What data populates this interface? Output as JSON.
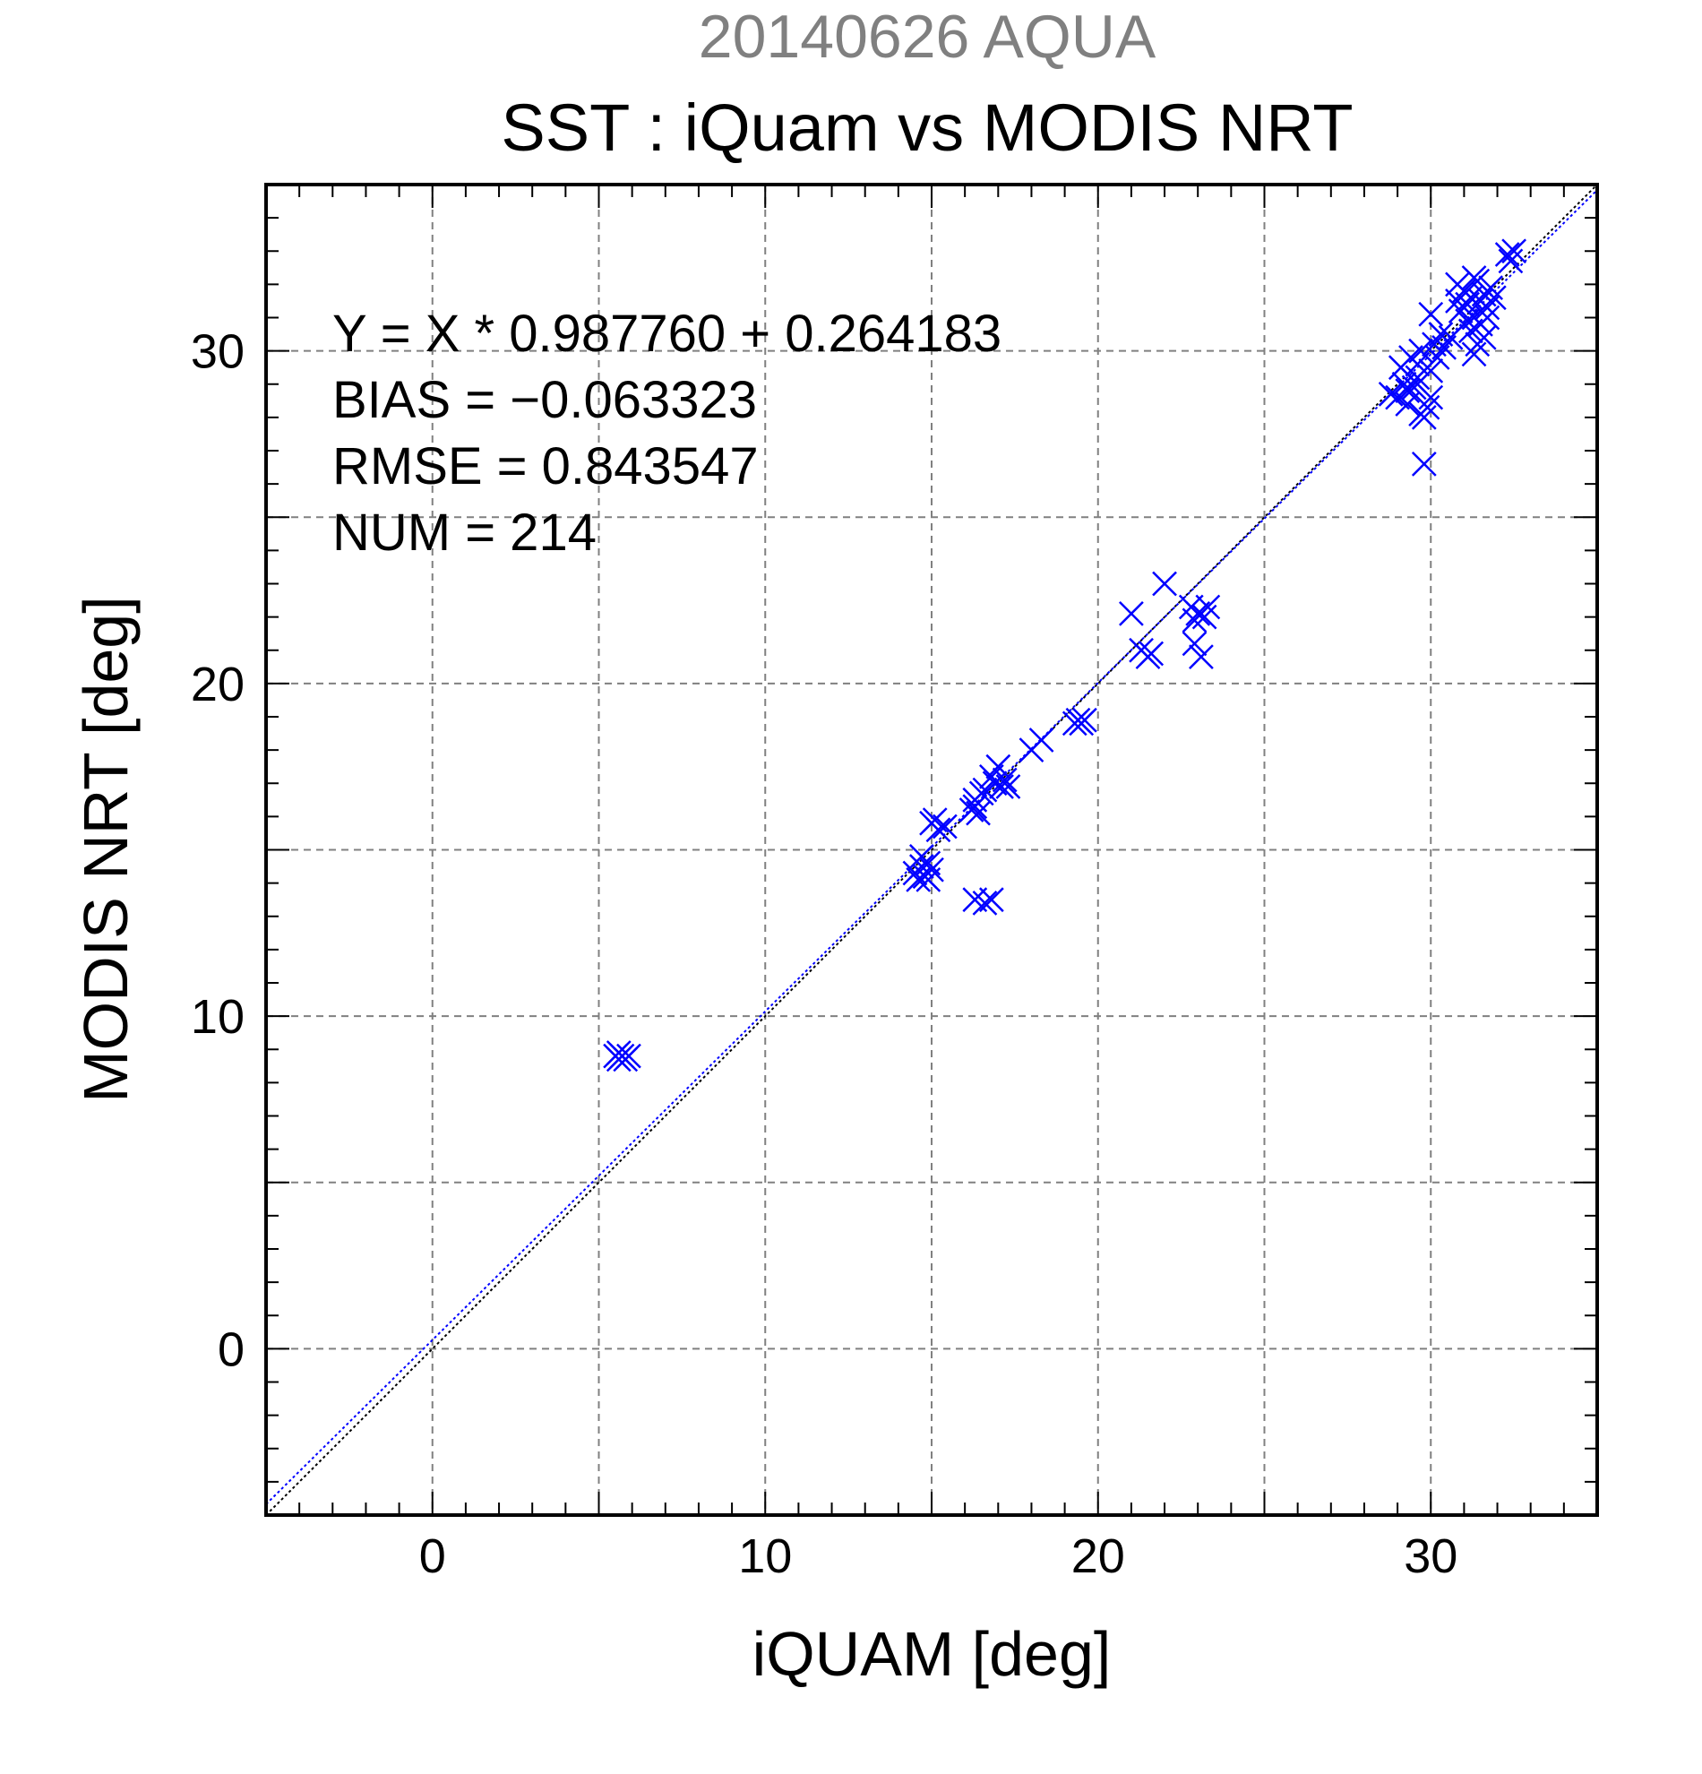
{
  "chart_data": {
    "type": "scatter",
    "subtitle": "20140626 AQUA",
    "title": "SST : iQuam vs MODIS NRT",
    "xlabel": "iQUAM [deg]",
    "ylabel": "MODIS NRT [deg]",
    "xlim": [
      -5,
      35
    ],
    "ylim": [
      -5,
      35
    ],
    "xticks": [
      0,
      10,
      20,
      30
    ],
    "yticks": [
      0,
      10,
      20,
      30
    ],
    "grid": true,
    "stats": [
      "Y = X * 0.987760 + 0.264183",
      "BIAS = −0.063323",
      "RMSE = 0.843547",
      "NUM = 214"
    ],
    "lines": [
      {
        "kind": "one-to-one",
        "slope": 1.0,
        "intercept": 0.0,
        "color": "#000000"
      },
      {
        "kind": "regression",
        "slope": 0.98776,
        "intercept": 0.264183,
        "color": "#0000ff"
      }
    ],
    "marker_color": "#0000ff",
    "points": [
      [
        5.5,
        8.8
      ],
      [
        5.6,
        8.7
      ],
      [
        5.7,
        8.8
      ],
      [
        5.8,
        8.7
      ],
      [
        5.9,
        8.8
      ],
      [
        5.6,
        8.9
      ],
      [
        14.5,
        14.3
      ],
      [
        14.6,
        14.1
      ],
      [
        14.7,
        14.5
      ],
      [
        14.8,
        14.2
      ],
      [
        14.9,
        14.6
      ],
      [
        15.0,
        14.4
      ],
      [
        14.7,
        14.8
      ],
      [
        14.9,
        14.1
      ],
      [
        15.0,
        15.8
      ],
      [
        15.2,
        15.6
      ],
      [
        15.4,
        15.7
      ],
      [
        15.1,
        15.9
      ],
      [
        16.2,
        16.2
      ],
      [
        16.3,
        16.5
      ],
      [
        16.4,
        16.1
      ],
      [
        16.5,
        16.7
      ],
      [
        16.3,
        16.3
      ],
      [
        16.6,
        16.8
      ],
      [
        16.8,
        17.2
      ],
      [
        16.9,
        17.0
      ],
      [
        17.0,
        17.5
      ],
      [
        17.1,
        16.9
      ],
      [
        17.2,
        17.1
      ],
      [
        17.3,
        16.9
      ],
      [
        16.3,
        13.5
      ],
      [
        16.6,
        13.4
      ],
      [
        16.8,
        13.5
      ],
      [
        18.0,
        18.0
      ],
      [
        18.3,
        18.3
      ],
      [
        19.3,
        18.8
      ],
      [
        19.4,
        18.9
      ],
      [
        19.5,
        18.8
      ],
      [
        19.6,
        18.9
      ],
      [
        21.0,
        22.1
      ],
      [
        21.3,
        21.0
      ],
      [
        21.5,
        20.8
      ],
      [
        21.6,
        20.9
      ],
      [
        22.0,
        23.0
      ],
      [
        22.8,
        22.3
      ],
      [
        22.9,
        21.9
      ],
      [
        23.0,
        22.1
      ],
      [
        23.1,
        20.8
      ],
      [
        23.2,
        22.0
      ],
      [
        23.3,
        22.3
      ],
      [
        22.9,
        21.2
      ],
      [
        28.8,
        28.7
      ],
      [
        29.0,
        28.6
      ],
      [
        29.1,
        29.5
      ],
      [
        29.2,
        29.0
      ],
      [
        29.3,
        28.4
      ],
      [
        29.4,
        29.8
      ],
      [
        29.5,
        28.9
      ],
      [
        29.6,
        29.2
      ],
      [
        29.7,
        28.1
      ],
      [
        29.8,
        28.0
      ],
      [
        29.9,
        28.3
      ],
      [
        29.6,
        29.6
      ],
      [
        29.7,
        30.0
      ],
      [
        29.8,
        26.6
      ],
      [
        30.0,
        28.6
      ],
      [
        30.1,
        30.2
      ],
      [
        30.2,
        29.8
      ],
      [
        30.3,
        30.5
      ],
      [
        30.4,
        30.1
      ],
      [
        30.0,
        29.4
      ],
      [
        29.5,
        29.1
      ],
      [
        29.3,
        28.8
      ],
      [
        30.6,
        30.4
      ],
      [
        30.8,
        31.5
      ],
      [
        30.9,
        31.2
      ],
      [
        31.0,
        31.8
      ],
      [
        31.1,
        31.4
      ],
      [
        31.2,
        31.6
      ],
      [
        31.3,
        31.0
      ],
      [
        31.4,
        32.1
      ],
      [
        31.5,
        31.5
      ],
      [
        31.6,
        31.7
      ],
      [
        31.7,
        31.3
      ],
      [
        31.8,
        31.9
      ],
      [
        31.9,
        31.6
      ],
      [
        31.5,
        30.8
      ],
      [
        31.4,
        30.2
      ],
      [
        31.3,
        29.9
      ],
      [
        31.6,
        30.4
      ],
      [
        31.2,
        30.6
      ],
      [
        31.7,
        31.0
      ],
      [
        31.1,
        30.9
      ],
      [
        30.0,
        31.1
      ],
      [
        30.8,
        32.0
      ],
      [
        31.3,
        32.2
      ],
      [
        32.3,
        32.9
      ],
      [
        32.5,
        33.0
      ],
      [
        32.4,
        32.7
      ]
    ]
  }
}
